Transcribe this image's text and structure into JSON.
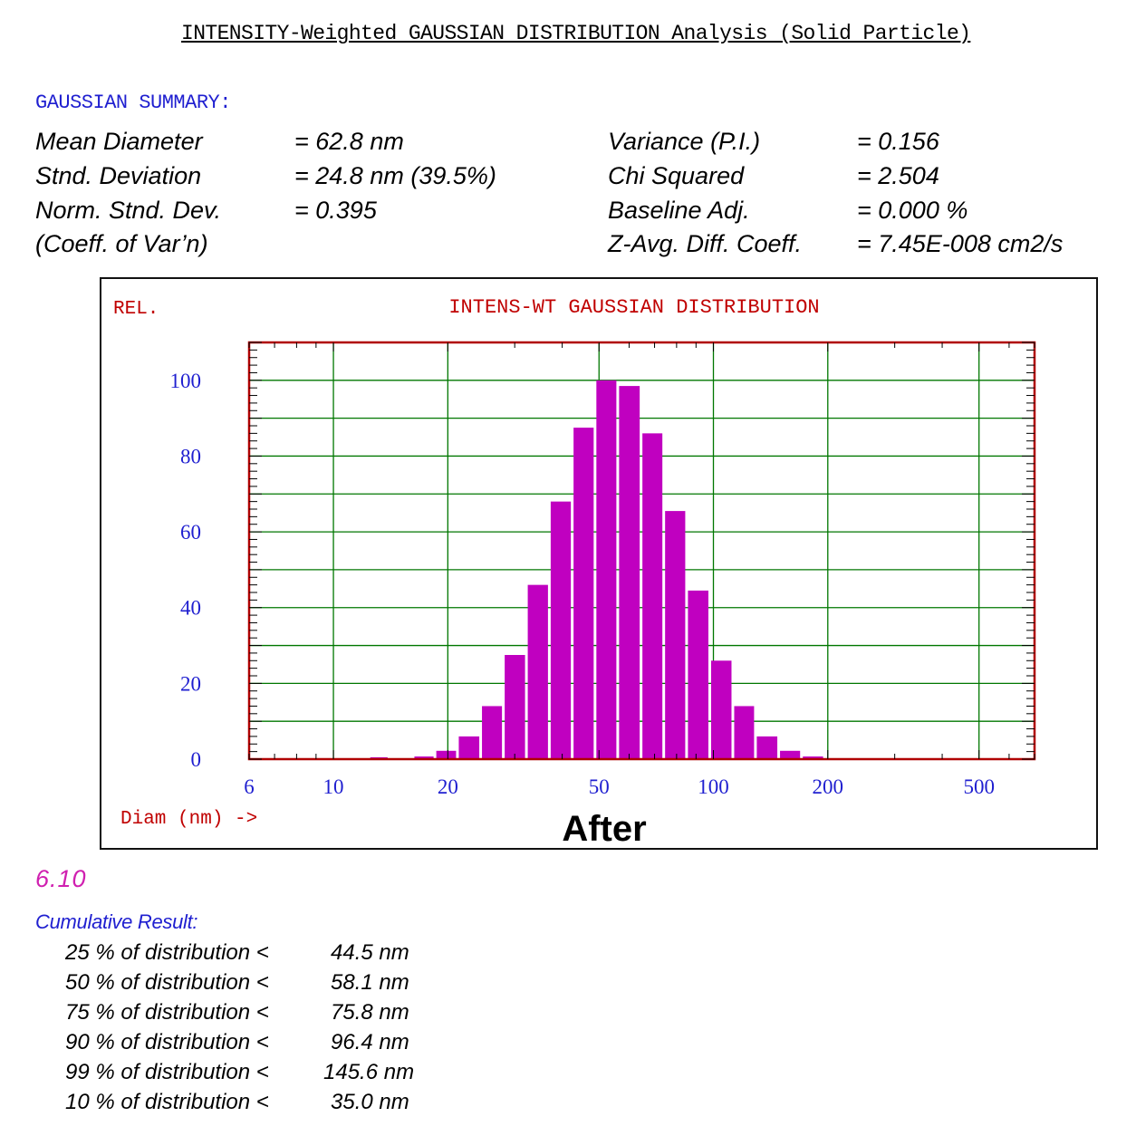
{
  "header": {
    "title": "INTENSITY-Weighted GAUSSIAN DISTRIBUTION Analysis (Solid Particle)"
  },
  "summary": {
    "heading": "GAUSSIAN SUMMARY:",
    "left": [
      {
        "label": "Mean Diameter",
        "value": "= 62.8  nm"
      },
      {
        "label": "Stnd. Deviation",
        "value": "= 24.8  nm (39.5%)"
      },
      {
        "label": "Norm. Stnd. Dev.",
        "value": "= 0.395"
      },
      {
        "label": "(Coeff. of Var’n)",
        "value": ""
      }
    ],
    "right": [
      {
        "label": "Variance (P.I.)",
        "value": "= 0.156"
      },
      {
        "label": "Chi Squared",
        "value": "= 2.504"
      },
      {
        "label": "Baseline Adj.",
        "value": "= 0.000 %"
      },
      {
        "label": "Z-Avg. Diff. Coeff.",
        "value": "= 7.45E-008 cm2/s"
      }
    ]
  },
  "chart_data": {
    "type": "bar",
    "title": "INTENS-WT GAUSSIAN DISTRIBUTION",
    "ylabel": "REL.",
    "xlabel": "Diam (nm) ->",
    "caption": "After",
    "x_scale": "log",
    "xlim": [
      6,
      700
    ],
    "ylim": [
      0,
      110
    ],
    "x_ticks": [
      6,
      10,
      20,
      50,
      100,
      200,
      500
    ],
    "y_ticks": [
      0,
      20,
      40,
      60,
      80,
      100
    ],
    "grid": true,
    "bar_color": "#c000c0",
    "bars": [
      {
        "lo": 12.4,
        "hi": 14.0,
        "value": 0.5
      },
      {
        "lo": 14.0,
        "hi": 16.2,
        "value": 0.0
      },
      {
        "lo": 16.2,
        "hi": 18.5,
        "value": 0.7
      },
      {
        "lo": 18.5,
        "hi": 21.2,
        "value": 2.2
      },
      {
        "lo": 21.2,
        "hi": 24.4,
        "value": 6.0
      },
      {
        "lo": 24.4,
        "hi": 28.0,
        "value": 14.0
      },
      {
        "lo": 28.0,
        "hi": 32.2,
        "value": 27.5
      },
      {
        "lo": 32.2,
        "hi": 37.0,
        "value": 46.0
      },
      {
        "lo": 37.0,
        "hi": 42.5,
        "value": 68.0
      },
      {
        "lo": 42.5,
        "hi": 48.8,
        "value": 87.5
      },
      {
        "lo": 48.8,
        "hi": 56.0,
        "value": 100.0
      },
      {
        "lo": 56.0,
        "hi": 64.5,
        "value": 98.5
      },
      {
        "lo": 64.5,
        "hi": 74.0,
        "value": 86.0
      },
      {
        "lo": 74.0,
        "hi": 85.0,
        "value": 65.5
      },
      {
        "lo": 85.0,
        "hi": 97.8,
        "value": 44.5
      },
      {
        "lo": 97.8,
        "hi": 112.5,
        "value": 26.0
      },
      {
        "lo": 112.5,
        "hi": 129.0,
        "value": 14.0
      },
      {
        "lo": 129.0,
        "hi": 148.5,
        "value": 6.0
      },
      {
        "lo": 148.5,
        "hi": 170.5,
        "value": 2.2
      },
      {
        "lo": 170.5,
        "hi": 196.0,
        "value": 0.7
      }
    ],
    "colors": {
      "frame": "#b00000",
      "grid": "#007700",
      "tick_labels": "#1f1fd0",
      "title": "#c00000"
    }
  },
  "section_number": "6.10",
  "cumulative": {
    "heading": "Cumulative Result:",
    "rows": [
      {
        "label": "25 % of distribution <",
        "value": "44.5 nm"
      },
      {
        "label": "50 % of distribution <",
        "value": "58.1 nm"
      },
      {
        "label": "75 % of distribution <",
        "value": "75.8 nm"
      },
      {
        "label": "90 % of distribution <",
        "value": "96.4 nm"
      },
      {
        "label": "99 % of distribution <",
        "value": "145.6 nm"
      },
      {
        "label": "10 % of distribution <",
        "value": "35.0 nm"
      }
    ]
  }
}
